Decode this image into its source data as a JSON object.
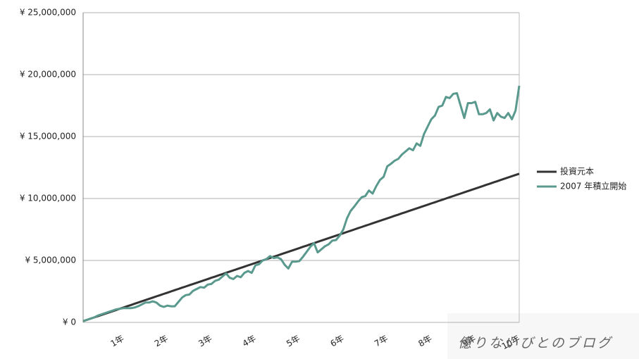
{
  "chart_data": {
    "type": "line",
    "categories": [
      null,
      null,
      null,
      null,
      null,
      null,
      null,
      null,
      null,
      null,
      null,
      "1年",
      null,
      null,
      null,
      null,
      null,
      null,
      null,
      null,
      null,
      null,
      null,
      "2年",
      null,
      null,
      null,
      null,
      null,
      null,
      null,
      null,
      null,
      null,
      null,
      "3年",
      null,
      null,
      null,
      null,
      null,
      null,
      null,
      null,
      null,
      null,
      null,
      "4年",
      null,
      null,
      null,
      null,
      null,
      null,
      null,
      null,
      null,
      null,
      null,
      "5年",
      null,
      null,
      null,
      null,
      null,
      null,
      null,
      null,
      null,
      null,
      null,
      "6年",
      null,
      null,
      null,
      null,
      null,
      null,
      null,
      null,
      null,
      null,
      null,
      "7年",
      null,
      null,
      null,
      null,
      null,
      null,
      null,
      null,
      null,
      null,
      null,
      "8年",
      null,
      null,
      null,
      null,
      null,
      null,
      null,
      null,
      null,
      null,
      null,
      "9年",
      null,
      null,
      null,
      null,
      null,
      null,
      null,
      null,
      null,
      null,
      null,
      "10年"
    ],
    "series": [
      {
        "name": "投資元本",
        "color": "#333333",
        "values": [
          100000,
          200000,
          300000,
          400000,
          500000,
          600000,
          700000,
          800000,
          900000,
          1000000,
          1100000,
          1200000,
          1300000,
          1400000,
          1500000,
          1600000,
          1700000,
          1800000,
          1900000,
          2000000,
          2100000,
          2200000,
          2300000,
          2400000,
          2500000,
          2600000,
          2700000,
          2800000,
          2900000,
          3000000,
          3100000,
          3200000,
          3300000,
          3400000,
          3500000,
          3600000,
          3700000,
          3800000,
          3900000,
          4000000,
          4100000,
          4200000,
          4300000,
          4400000,
          4500000,
          4600000,
          4700000,
          4800000,
          4900000,
          5000000,
          5100000,
          5200000,
          5300000,
          5400000,
          5500000,
          5600000,
          5700000,
          5800000,
          5900000,
          6000000,
          6100000,
          6200000,
          6300000,
          6400000,
          6500000,
          6600000,
          6700000,
          6800000,
          6900000,
          7000000,
          7100000,
          7200000,
          7300000,
          7400000,
          7500000,
          7600000,
          7700000,
          7800000,
          7900000,
          8000000,
          8100000,
          8200000,
          8300000,
          8400000,
          8500000,
          8600000,
          8700000,
          8800000,
          8900000,
          9000000,
          9100000,
          9200000,
          9300000,
          9400000,
          9500000,
          9600000,
          9700000,
          9800000,
          9900000,
          10000000,
          10100000,
          10200000,
          10300000,
          10400000,
          10500000,
          10600000,
          10700000,
          10800000,
          10900000,
          11000000,
          11100000,
          11200000,
          11300000,
          11400000,
          11500000,
          11600000,
          11700000,
          11800000,
          11900000,
          12000000
        ]
      },
      {
        "name": "2007 年積立開始",
        "color": "#5a9a8e",
        "values": [
          100000,
          200000,
          300000,
          400000,
          550000,
          650000,
          750000,
          850000,
          950000,
          1050000,
          1100000,
          1150000,
          1150000,
          1150000,
          1200000,
          1300000,
          1450000,
          1600000,
          1600000,
          1700000,
          1600000,
          1350000,
          1250000,
          1350000,
          1300000,
          1300000,
          1650000,
          2000000,
          2200000,
          2250000,
          2550000,
          2700000,
          2850000,
          2800000,
          3050000,
          3100000,
          3350000,
          3450000,
          3700000,
          3950000,
          3600000,
          3500000,
          3750000,
          3650000,
          4000000,
          4150000,
          4000000,
          4600000,
          4700000,
          5000000,
          5100000,
          5350000,
          5200000,
          5250000,
          5100000,
          4650000,
          4350000,
          4900000,
          4900000,
          4950000,
          5300000,
          5700000,
          6100000,
          6400000,
          5650000,
          5900000,
          6150000,
          6300000,
          6600000,
          6650000,
          7000000,
          7500000,
          8400000,
          9000000,
          9350000,
          9750000,
          10100000,
          10200000,
          10650000,
          10400000,
          11000000,
          11500000,
          11750000,
          12600000,
          12800000,
          13050000,
          13200000,
          13550000,
          13800000,
          14050000,
          13900000,
          14450000,
          14250000,
          15200000,
          15800000,
          16400000,
          16700000,
          17400000,
          17500000,
          18200000,
          18100000,
          18450000,
          18500000,
          17500000,
          16500000,
          17700000,
          17700000,
          17800000,
          16800000,
          16800000,
          16900000,
          17200000,
          16300000,
          16900000,
          16600000,
          16500000,
          16900000,
          16400000,
          17100000,
          19100000
        ]
      }
    ],
    "ylim": [
      0,
      25000000
    ],
    "yticks": [
      {
        "value": 0,
        "label": "¥ 0"
      },
      {
        "value": 5000000,
        "label": "¥ 5,000,000"
      },
      {
        "value": 10000000,
        "label": "¥ 10,000,000"
      },
      {
        "value": 15000000,
        "label": "¥ 15,000,000"
      },
      {
        "value": 20000000,
        "label": "¥ 20,000,000"
      },
      {
        "value": 25000000,
        "label": "¥ 25,000,000"
      }
    ],
    "grid": true,
    "legend": "right"
  },
  "watermark": "億りないびとのブログ"
}
